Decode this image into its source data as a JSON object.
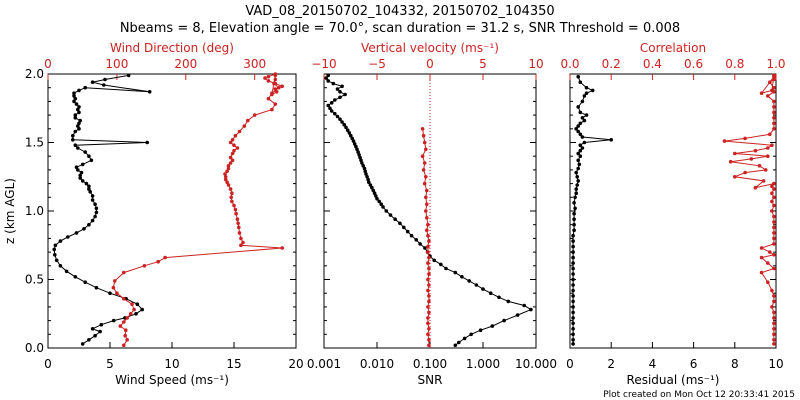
{
  "figure": {
    "title_line1": "VAD_08_20150702_104332, 20150702_104350",
    "title_line2": "Nbeams = 8, Elevation angle = 70.0°, scan duration = 31.2 s, SNR Threshold = 0.008",
    "footer": "Plot created on Mon Oct 12 20:33:41 2015"
  },
  "colors": {
    "black": "#000000",
    "red": "#cc2222",
    "dotted": "#cc2222"
  },
  "chart_data": [
    {
      "type": "line",
      "panel": "left",
      "ylabel": "z (km AGL)",
      "ylim": [
        0,
        2
      ],
      "yticks": [
        "0.0",
        "0.5",
        "1.0",
        "1.5",
        "2.0"
      ],
      "xlabel_bottom": "Wind Speed (ms⁻¹)",
      "xlim_bottom": [
        0,
        20
      ],
      "xticks_bottom": [
        "0",
        "5",
        "10",
        "15",
        "20"
      ],
      "xlabel_top": "Wind Direction (deg)",
      "xlim_top": [
        0,
        360
      ],
      "xticks_top": [
        "0",
        "100",
        "200",
        "300"
      ],
      "series": [
        {
          "color": "black",
          "axis": "bottom",
          "x": [
            2.8,
            3.3,
            3.8,
            4.2,
            3.6,
            4.3,
            5.3,
            6.2,
            7.1,
            7.6,
            7.2,
            6.3,
            5.0,
            3.9,
            3.0,
            2.2,
            1.5,
            1.0,
            0.7,
            0.55,
            0.5,
            0.6,
            1.0,
            1.6,
            2.3,
            2.9,
            3.3,
            3.6,
            3.8,
            3.9,
            3.9,
            3.8,
            3.6,
            3.6,
            3.4,
            3.3,
            3.3,
            3.1,
            2.8,
            2.6,
            2.6,
            2.7,
            2.4,
            2.3,
            2.8,
            3.5,
            3.3,
            3.0,
            2.4,
            2.2,
            8.0,
            2.0,
            2.0,
            2.2,
            2.5,
            2.4,
            2.5,
            2.6,
            2.2,
            2.2,
            2.5,
            2.4,
            2.5,
            2.3,
            2.1,
            2.2,
            2.1,
            2.1,
            2.5,
            3.0,
            8.2,
            4.5,
            3.6,
            4.6,
            6.5
          ],
          "z": [
            0.03,
            0.06,
            0.09,
            0.12,
            0.14,
            0.17,
            0.2,
            0.22,
            0.25,
            0.28,
            0.32,
            0.36,
            0.4,
            0.44,
            0.48,
            0.52,
            0.56,
            0.6,
            0.64,
            0.68,
            0.72,
            0.75,
            0.78,
            0.81,
            0.84,
            0.87,
            0.9,
            0.93,
            0.96,
            0.99,
            1.02,
            1.05,
            1.08,
            1.11,
            1.14,
            1.16,
            1.18,
            1.2,
            1.22,
            1.24,
            1.26,
            1.28,
            1.3,
            1.32,
            1.34,
            1.37,
            1.4,
            1.43,
            1.46,
            1.48,
            1.5,
            1.52,
            1.55,
            1.58,
            1.6,
            1.62,
            1.64,
            1.66,
            1.68,
            1.7,
            1.72,
            1.74,
            1.76,
            1.78,
            1.8,
            1.82,
            1.84,
            1.86,
            1.88,
            1.9,
            1.87,
            1.92,
            1.94,
            1.96,
            1.99
          ]
        },
        {
          "color": "red",
          "axis": "top",
          "x": [
            110,
            115,
            112,
            113,
            105,
            110,
            115,
            120,
            125,
            122,
            110,
            100,
            95,
            97,
            110,
            140,
            160,
            170,
            340,
            280,
            283,
            280,
            278,
            277,
            276,
            275,
            273,
            272,
            270,
            267,
            266,
            267,
            265,
            262,
            260,
            258,
            258,
            257,
            260,
            262,
            262,
            265,
            268,
            265,
            268,
            270,
            275,
            270,
            265,
            268,
            272,
            278,
            285,
            290,
            300,
            325,
            330,
            320,
            325,
            335,
            328,
            330,
            330,
            325,
            332,
            330,
            340,
            330,
            320,
            315,
            320,
            330
          ],
          "z": [
            0.02,
            0.06,
            0.09,
            0.13,
            0.16,
            0.19,
            0.22,
            0.25,
            0.28,
            0.32,
            0.36,
            0.4,
            0.44,
            0.49,
            0.55,
            0.6,
            0.63,
            0.66,
            0.73,
            0.75,
            0.77,
            0.8,
            0.84,
            0.88,
            0.91,
            0.94,
            0.98,
            1.01,
            1.04,
            1.07,
            1.1,
            1.13,
            1.16,
            1.19,
            1.21,
            1.23,
            1.25,
            1.27,
            1.29,
            1.31,
            1.33,
            1.35,
            1.37,
            1.39,
            1.42,
            1.44,
            1.46,
            1.48,
            1.5,
            1.52,
            1.55,
            1.58,
            1.62,
            1.66,
            1.7,
            1.74,
            1.78,
            1.82,
            1.86,
            1.9,
            1.93,
            1.96,
            1.99,
            1.85,
            1.87,
            1.89,
            1.91,
            1.93,
            1.95,
            1.97,
            1.98,
            2.0
          ]
        }
      ]
    },
    {
      "type": "line",
      "panel": "middle",
      "xlabel_bottom": "SNR",
      "xscale_bottom": "log",
      "xlim_bottom": [
        0.001,
        10
      ],
      "xticks_bottom": [
        "0.001",
        "0.010",
        "0.100",
        "1.000",
        "10.000"
      ],
      "xlabel_top": "Vertical velocity (ms⁻¹)",
      "xlim_top": [
        -10,
        10
      ],
      "xticks_top": [
        "−10",
        "−5",
        "0",
        "5",
        "10"
      ],
      "series": [
        {
          "color": "black",
          "axis": "bottom",
          "x": [
            0.3,
            0.35,
            0.45,
            0.6,
            0.9,
            1.5,
            2.5,
            4.5,
            8.0,
            6.0,
            3.0,
            2.0,
            1.4,
            1.0,
            0.75,
            0.55,
            0.4,
            0.3,
            0.2,
            0.16,
            0.12,
            0.1,
            0.09,
            0.08,
            0.065,
            0.055,
            0.045,
            0.038,
            0.032,
            0.027,
            0.022,
            0.018,
            0.015,
            0.013,
            0.012,
            0.011,
            0.01,
            0.0095,
            0.009,
            0.0085,
            0.008,
            0.0075,
            0.007,
            0.0068,
            0.0065,
            0.0062,
            0.006,
            0.0058,
            0.0055,
            0.0052,
            0.005,
            0.0048,
            0.0046,
            0.0044,
            0.0042,
            0.004,
            0.0038,
            0.0036,
            0.0034,
            0.0032,
            0.003,
            0.0028,
            0.0026,
            0.0024,
            0.0022,
            0.002,
            0.0018,
            0.0016,
            0.0014,
            0.0013,
            0.0012,
            0.0014,
            0.0016,
            0.002,
            0.0025,
            0.002,
            0.0018,
            0.0022,
            0.0015,
            0.0012,
            0.0011,
            0.0012
          ],
          "z": [
            0.02,
            0.04,
            0.07,
            0.1,
            0.13,
            0.16,
            0.2,
            0.24,
            0.28,
            0.31,
            0.34,
            0.37,
            0.4,
            0.43,
            0.46,
            0.49,
            0.52,
            0.55,
            0.58,
            0.61,
            0.64,
            0.67,
            0.7,
            0.73,
            0.76,
            0.79,
            0.82,
            0.85,
            0.88,
            0.91,
            0.94,
            0.97,
            1.0,
            1.03,
            1.05,
            1.07,
            1.09,
            1.11,
            1.13,
            1.15,
            1.17,
            1.19,
            1.21,
            1.23,
            1.25,
            1.27,
            1.29,
            1.31,
            1.33,
            1.35,
            1.37,
            1.39,
            1.41,
            1.43,
            1.45,
            1.47,
            1.49,
            1.51,
            1.53,
            1.55,
            1.57,
            1.59,
            1.61,
            1.63,
            1.65,
            1.67,
            1.69,
            1.71,
            1.73,
            1.75,
            1.77,
            1.79,
            1.81,
            1.83,
            1.85,
            1.87,
            1.89,
            1.91,
            1.93,
            1.95,
            1.97,
            1.99
          ]
        },
        {
          "color": "red",
          "axis": "top",
          "x": [
            -0.1,
            -0.1,
            -0.2,
            -0.1,
            -0.2,
            -0.2,
            -0.1,
            -0.2,
            -0.1,
            -0.1,
            -0.2,
            -0.1,
            -0.2,
            -0.1,
            -0.1,
            -0.2,
            -0.1,
            -0.2,
            -0.2,
            -0.1,
            -0.2,
            -0.3,
            -0.2,
            -0.3,
            -0.4,
            -0.3,
            -0.4,
            -0.3,
            -0.5,
            -0.4,
            -0.6,
            -0.5,
            -0.7,
            -0.4,
            -0.5,
            -0.6,
            -0.7
          ],
          "z": [
            0.02,
            0.06,
            0.1,
            0.14,
            0.18,
            0.22,
            0.26,
            0.3,
            0.34,
            0.38,
            0.42,
            0.46,
            0.5,
            0.54,
            0.58,
            0.62,
            0.66,
            0.7,
            0.74,
            0.78,
            0.82,
            0.86,
            0.9,
            0.95,
            1.0,
            1.05,
            1.1,
            1.15,
            1.2,
            1.25,
            1.3,
            1.35,
            1.4,
            1.45,
            1.5,
            1.55,
            1.6
          ]
        }
      ]
    },
    {
      "type": "line",
      "panel": "right",
      "xlabel_bottom": "Residual (ms⁻¹)",
      "xlim_bottom": [
        0,
        10
      ],
      "xticks_bottom": [
        "0",
        "2",
        "4",
        "6",
        "8",
        "10"
      ],
      "xlabel_top": "Correlation",
      "xlim_top": [
        0,
        1
      ],
      "xticks_top": [
        "0.0",
        "0.2",
        "0.4",
        "0.6",
        "0.8",
        "1.0"
      ],
      "series": [
        {
          "color": "black",
          "axis": "bottom",
          "x": [
            0.15,
            0.15,
            0.15,
            0.15,
            0.15,
            0.15,
            0.15,
            0.15,
            0.15,
            0.15,
            0.15,
            0.15,
            0.15,
            0.15,
            0.15,
            0.15,
            0.15,
            0.15,
            0.15,
            0.15,
            0.15,
            0.2,
            0.2,
            0.2,
            0.2,
            0.25,
            0.2,
            0.25,
            0.3,
            0.3,
            0.35,
            0.4,
            0.35,
            0.3,
            0.4,
            0.45,
            0.4,
            0.5,
            0.4,
            0.5,
            0.6,
            0.5,
            0.7,
            2.0,
            0.6,
            0.5,
            0.4,
            0.3,
            0.4,
            0.5,
            0.7,
            0.6,
            0.8,
            0.5,
            0.4,
            0.6,
            0.7,
            0.8,
            1.1,
            0.8,
            0.5,
            0.4
          ],
          "z": [
            0.03,
            0.06,
            0.1,
            0.14,
            0.18,
            0.22,
            0.26,
            0.3,
            0.34,
            0.38,
            0.42,
            0.46,
            0.5,
            0.54,
            0.58,
            0.62,
            0.66,
            0.7,
            0.74,
            0.78,
            0.82,
            0.86,
            0.9,
            0.94,
            0.98,
            1.02,
            1.06,
            1.1,
            1.13,
            1.16,
            1.19,
            1.22,
            1.25,
            1.28,
            1.31,
            1.34,
            1.37,
            1.4,
            1.42,
            1.44,
            1.46,
            1.48,
            1.5,
            1.52,
            1.54,
            1.56,
            1.58,
            1.6,
            1.62,
            1.64,
            1.66,
            1.68,
            1.7,
            1.72,
            1.76,
            1.8,
            1.84,
            1.86,
            1.88,
            1.9,
            1.94,
            1.98
          ]
        },
        {
          "color": "red",
          "axis": "top",
          "x": [
            0.99,
            0.99,
            0.99,
            0.99,
            0.99,
            0.99,
            0.99,
            0.98,
            0.99,
            0.99,
            0.98,
            0.96,
            0.93,
            0.99,
            0.96,
            0.93,
            0.99,
            0.97,
            0.93,
            0.99,
            0.99,
            0.99,
            0.99,
            0.99,
            0.99,
            0.98,
            0.99,
            0.98,
            0.99,
            0.98,
            0.99,
            0.98,
            0.99,
            0.9,
            0.94,
            0.8,
            0.85,
            0.95,
            0.92,
            0.78,
            0.88,
            0.96,
            0.8,
            0.9,
            0.96,
            0.98,
            0.75,
            0.85,
            0.97,
            0.99,
            0.99,
            0.99,
            0.99,
            0.99,
            0.99,
            0.96,
            0.99,
            0.99,
            0.97,
            0.99,
            0.99,
            0.93,
            0.98,
            0.99
          ],
          "z": [
            0.03,
            0.06,
            0.1,
            0.14,
            0.18,
            0.22,
            0.26,
            0.3,
            0.34,
            0.38,
            0.42,
            0.48,
            0.55,
            0.58,
            0.62,
            0.66,
            0.68,
            0.7,
            0.73,
            0.76,
            0.8,
            0.84,
            0.88,
            0.92,
            0.96,
            1.0,
            1.04,
            1.07,
            1.1,
            1.13,
            1.16,
            1.18,
            1.2,
            1.17,
            1.22,
            1.25,
            1.28,
            1.3,
            1.33,
            1.36,
            1.38,
            1.4,
            1.42,
            1.44,
            1.46,
            1.48,
            1.51,
            1.53,
            1.56,
            1.6,
            1.64,
            1.68,
            1.72,
            1.76,
            1.8,
            1.84,
            1.87,
            1.9,
            1.94,
            1.96,
            1.98,
            1.86,
            1.88,
            1.99
          ]
        }
      ]
    }
  ]
}
